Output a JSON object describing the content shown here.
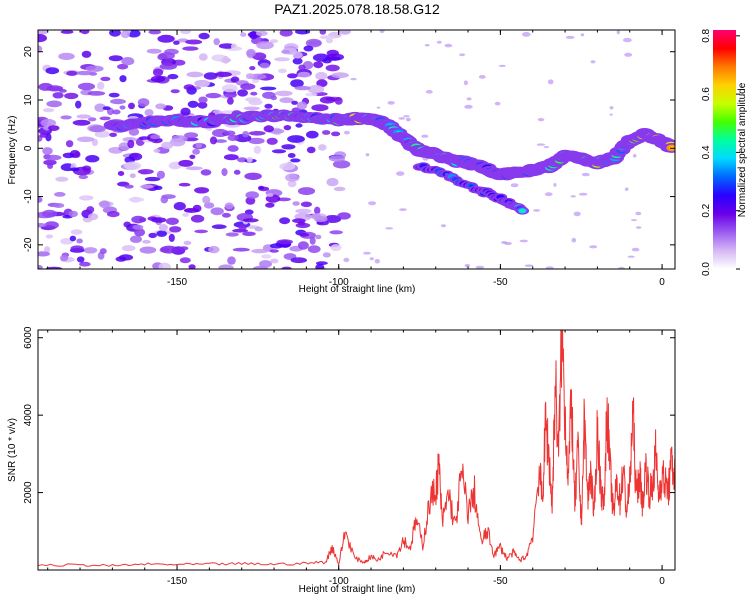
{
  "title": "PAZ1.2025.078.18.58.G12",
  "chart_data": [
    {
      "type": "heatmap",
      "xlabel": "Height of straight line (km)",
      "ylabel": "Frequency (Hz)",
      "xlim": [
        -193,
        4
      ],
      "ylim": [
        -25,
        24.5
      ],
      "x_ticks": [
        -150,
        -100,
        -50,
        0
      ],
      "y_ticks": [
        -20,
        -10,
        0,
        10,
        20
      ],
      "grid": false,
      "colorbar": {
        "label": "Normalized spectral amplitude",
        "range": [
          0,
          0.82
        ],
        "ticks": [
          0.0,
          0.2,
          0.4,
          0.6,
          0.8
        ],
        "colormap": [
          "#ffffff",
          "#d6b8f5",
          "#9b5cf0",
          "#6a00e8",
          "#2a00ff",
          "#0066ff",
          "#00d8ff",
          "#00ffa0",
          "#44ff00",
          "#c8ff00",
          "#ffd000",
          "#ff7a00",
          "#ff0000",
          "#ff0070"
        ]
      },
      "ridge": {
        "x": [
          -170,
          -160,
          -150,
          -140,
          -130,
          -120,
          -110,
          -100,
          -95,
          -90,
          -85,
          -80,
          -75,
          -70,
          -65,
          -60,
          -55,
          -50,
          -45,
          -40,
          -35,
          -30,
          -25,
          -20,
          -15,
          -10,
          -5,
          0,
          3
        ],
        "y": [
          4.5,
          5.3,
          5.8,
          5.5,
          6.3,
          6.8,
          6.5,
          5.9,
          6.2,
          5.9,
          5.0,
          2.0,
          -0.5,
          -1.2,
          -2.5,
          -3.0,
          -4.0,
          -5.5,
          -5.0,
          -4.5,
          -3.8,
          -1.5,
          -2.0,
          -3.0,
          -2.0,
          1.5,
          3.0,
          1.5,
          0.2
        ],
        "peak_amplitude": [
          0.35,
          0.42,
          0.45,
          0.4,
          0.5,
          0.55,
          0.45,
          0.5,
          0.7,
          0.6,
          0.45,
          0.45,
          0.5,
          0.45,
          0.5,
          0.35,
          0.45,
          0.5,
          0.45,
          0.4,
          0.5,
          0.6,
          0.55,
          0.7,
          0.45,
          0.55,
          0.65,
          0.75,
          0.82
        ]
      },
      "secondary_ridge": {
        "x": [
          -75,
          -65,
          -55,
          -48,
          -43
        ],
        "y": [
          -3.5,
          -6.0,
          -9.0,
          -11.0,
          -13.0
        ],
        "peak_amplitude": [
          0.3,
          0.35,
          0.3,
          0.35,
          0.45
        ]
      }
    },
    {
      "type": "line",
      "xlabel": "Height of straight line (km)",
      "ylabel": "SNR (10 * v/v)",
      "xlim": [
        -193,
        4
      ],
      "ylim": [
        0,
        6200
      ],
      "x_ticks": [
        -150,
        -100,
        -50,
        0
      ],
      "y_ticks": [
        2000,
        4000,
        6000
      ],
      "grid": false,
      "series": [
        {
          "color": "#ee3333",
          "x": [
            -193,
            -180,
            -170,
            -160,
            -150,
            -140,
            -130,
            -120,
            -110,
            -104,
            -102,
            -100,
            -98,
            -95,
            -92,
            -90,
            -88,
            -85,
            -82,
            -80,
            -78,
            -76,
            -74,
            -72,
            -70,
            -69,
            -68,
            -66,
            -64,
            -62,
            -60,
            -58,
            -56,
            -54,
            -52,
            -50,
            -48,
            -46,
            -44,
            -42,
            -40,
            -38,
            -37,
            -36,
            -35,
            -34,
            -33,
            -32,
            -31,
            -30,
            -29,
            -28,
            -27,
            -26,
            -25,
            -24,
            -23,
            -22,
            -21,
            -20,
            -19,
            -18,
            -17,
            -16,
            -15,
            -14,
            -13,
            -12,
            -11,
            -10,
            -9,
            -8,
            -7,
            -6,
            -5,
            -4,
            -3,
            -2,
            -1,
            0,
            1,
            2,
            3,
            4
          ],
          "y": [
            120,
            130,
            110,
            150,
            140,
            150,
            160,
            150,
            170,
            210,
            600,
            150,
            1000,
            300,
            200,
            350,
            250,
            500,
            400,
            800,
            550,
            1300,
            650,
            1700,
            2100,
            2700,
            1200,
            2000,
            1100,
            2500,
            1500,
            2000,
            700,
            1000,
            400,
            600,
            300,
            450,
            250,
            350,
            900,
            2600,
            1800,
            3800,
            3000,
            1600,
            4900,
            2900,
            6250,
            4000,
            2400,
            4400,
            1600,
            3100,
            1200,
            3900,
            1800,
            2600,
            1300,
            3700,
            2200,
            1600,
            4200,
            2500,
            1400,
            2300,
            1800,
            2600,
            1500,
            2200,
            4100,
            1900,
            2500,
            1700,
            2700,
            2000,
            2100,
            3000,
            1900,
            2500,
            2200,
            2100,
            2800,
            2400
          ]
        }
      ]
    }
  ]
}
